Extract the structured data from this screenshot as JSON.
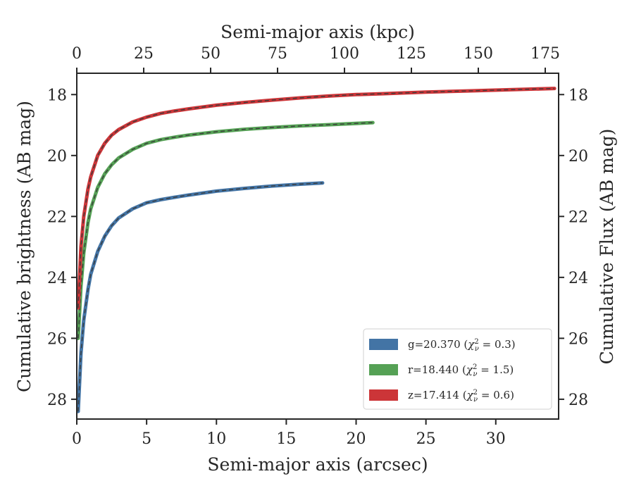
{
  "chart_data": {
    "type": "line",
    "xlabel": "Semi-major axis (arcsec)",
    "x2label": "Semi-major axis (kpc)",
    "ylabel": "Cumulative brightness (AB mag)",
    "y2label": "Cumulative Flux (AB mag)",
    "xlim": [
      0,
      34.5
    ],
    "x2lim": [
      0,
      180
    ],
    "ylim": [
      28.65,
      17.3
    ],
    "y_inverted": true,
    "xticks": [
      "0",
      "5",
      "10",
      "15",
      "20",
      "25",
      "30"
    ],
    "x2ticks": [
      "0",
      "25",
      "50",
      "75",
      "100",
      "125",
      "150",
      "175"
    ],
    "yticks": [
      "18",
      "20",
      "22",
      "24",
      "26",
      "28"
    ],
    "legend_position": "lower-right",
    "series": [
      {
        "name": "g=20.370 (χ²_ν = 0.3)",
        "label_main": "g=20.370 (",
        "label_chi": "χ",
        "label_sup": "2",
        "label_sub": "ν",
        "label_tail": " = 0.3)",
        "color": "#4374a5",
        "x": [
          0.1,
          0.3,
          0.5,
          0.8,
          1.0,
          1.5,
          2.0,
          2.5,
          3.0,
          4.0,
          5.0,
          6.0,
          7.0,
          8.0,
          10.0,
          12.0,
          14.0,
          16.0,
          17.6
        ],
        "y": [
          28.4,
          26.5,
          25.4,
          24.4,
          23.9,
          23.15,
          22.65,
          22.3,
          22.05,
          21.75,
          21.55,
          21.45,
          21.37,
          21.3,
          21.17,
          21.08,
          21.0,
          20.94,
          20.9
        ]
      },
      {
        "name": "r=18.440 (χ²_ν = 1.5)",
        "label_main": "r=18.440 (",
        "label_chi": "χ",
        "label_sup": "2",
        "label_sub": "ν",
        "label_tail": " = 1.5)",
        "color": "#55a155",
        "x": [
          0.1,
          0.3,
          0.5,
          0.8,
          1.0,
          1.5,
          2.0,
          2.5,
          3.0,
          4.0,
          5.0,
          6.0,
          7.0,
          8.0,
          10.0,
          12.0,
          14.0,
          16.0,
          18.0,
          21.2
        ],
        "y": [
          26.0,
          24.3,
          23.2,
          22.2,
          21.75,
          21.05,
          20.6,
          20.3,
          20.08,
          19.8,
          19.6,
          19.48,
          19.4,
          19.33,
          19.22,
          19.14,
          19.08,
          19.03,
          18.99,
          18.92
        ]
      },
      {
        "name": "z=17.414 (χ²_ν = 0.6)",
        "label_main": "z=17.414 (",
        "label_chi": "χ",
        "label_sup": "2",
        "label_sub": "ν",
        "label_tail": " = 0.6)",
        "color": "#cc3538",
        "x": [
          0.1,
          0.3,
          0.5,
          0.8,
          1.0,
          1.5,
          2.0,
          2.5,
          3.0,
          4.0,
          5.0,
          6.0,
          7.0,
          8.0,
          10.0,
          12.0,
          14.0,
          16.0,
          18.0,
          20.0,
          22.0,
          25.0,
          28.0,
          31.0,
          34.2
        ],
        "y": [
          25.0,
          23.0,
          22.0,
          21.1,
          20.7,
          20.0,
          19.6,
          19.33,
          19.15,
          18.9,
          18.74,
          18.62,
          18.54,
          18.47,
          18.35,
          18.26,
          18.18,
          18.11,
          18.05,
          18.0,
          17.97,
          17.92,
          17.88,
          17.84,
          17.8
        ]
      }
    ],
    "model_line_style": "dashed",
    "model_line_color": "#3a3a3a"
  }
}
